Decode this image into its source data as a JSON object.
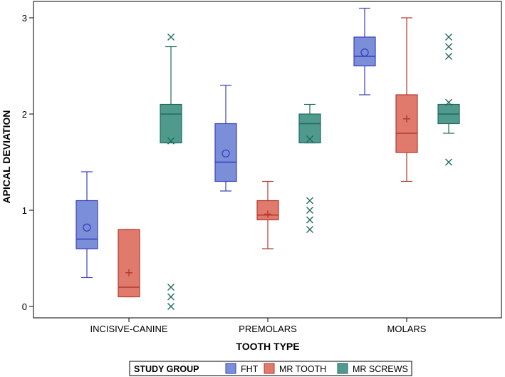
{
  "chart_data": {
    "type": "boxplot",
    "title": "",
    "xlabel": "TOOTH TYPE",
    "ylabel": "APICAL DEVIATION",
    "ylim": [
      -0.1,
      3.15
    ],
    "yticks": [
      "0",
      "1",
      "2",
      "3"
    ],
    "categories": [
      "INCISIVE-CANINE",
      "PREMOLARS",
      "MOLARS"
    ],
    "legend": {
      "title": "STUDY GROUP",
      "position": "bottom-center",
      "entries": [
        "FHT",
        "MR TOOTH",
        "MR SCREWS"
      ]
    },
    "series": [
      {
        "name": "FHT",
        "fill": "#7b8fd8",
        "stroke": "#3a3fbf",
        "mean_marker": "circle",
        "boxes": [
          {
            "min": 0.3,
            "q1": 0.6,
            "median": 0.7,
            "q3": 1.1,
            "max": 1.4,
            "mean": 0.82,
            "outliers": []
          },
          {
            "min": 1.2,
            "q1": 1.3,
            "median": 1.5,
            "q3": 1.9,
            "max": 2.3,
            "mean": 1.59,
            "outliers": []
          },
          {
            "min": 2.2,
            "q1": 2.5,
            "median": 2.6,
            "q3": 2.8,
            "max": 3.1,
            "mean": 2.64,
            "outliers": []
          }
        ]
      },
      {
        "name": "MR TOOTH",
        "fill": "#e07a6c",
        "stroke": "#b33a2e",
        "mean_marker": "plus",
        "boxes": [
          {
            "min": 0.1,
            "q1": 0.1,
            "median": 0.2,
            "q3": 0.8,
            "max": 0.8,
            "mean": 0.35,
            "outliers": []
          },
          {
            "min": 0.6,
            "q1": 0.9,
            "median": 0.95,
            "q3": 1.1,
            "max": 1.3,
            "mean": 0.96,
            "outliers": []
          },
          {
            "min": 1.3,
            "q1": 1.6,
            "median": 1.8,
            "q3": 2.2,
            "max": 3.0,
            "mean": 1.95,
            "outliers": []
          }
        ]
      },
      {
        "name": "MR SCREWS",
        "fill": "#4f9a8c",
        "stroke": "#1f6b5e",
        "mean_marker": "x",
        "boxes": [
          {
            "min": 1.7,
            "q1": 1.7,
            "median": 2.0,
            "q3": 2.1,
            "max": 2.7,
            "mean": 1.72,
            "outliers": [
              2.8,
              0.0,
              0.1,
              0.2
            ]
          },
          {
            "min": 1.7,
            "q1": 1.7,
            "median": 1.9,
            "q3": 2.0,
            "max": 2.1,
            "mean": 1.74,
            "outliers": [
              0.8,
              0.9,
              1.0,
              1.1
            ]
          },
          {
            "min": 1.8,
            "q1": 1.9,
            "median": 2.0,
            "q3": 2.1,
            "max": 2.1,
            "mean": 2.12,
            "outliers": [
              1.5,
              2.6,
              2.7,
              2.8
            ]
          }
        ]
      }
    ]
  }
}
